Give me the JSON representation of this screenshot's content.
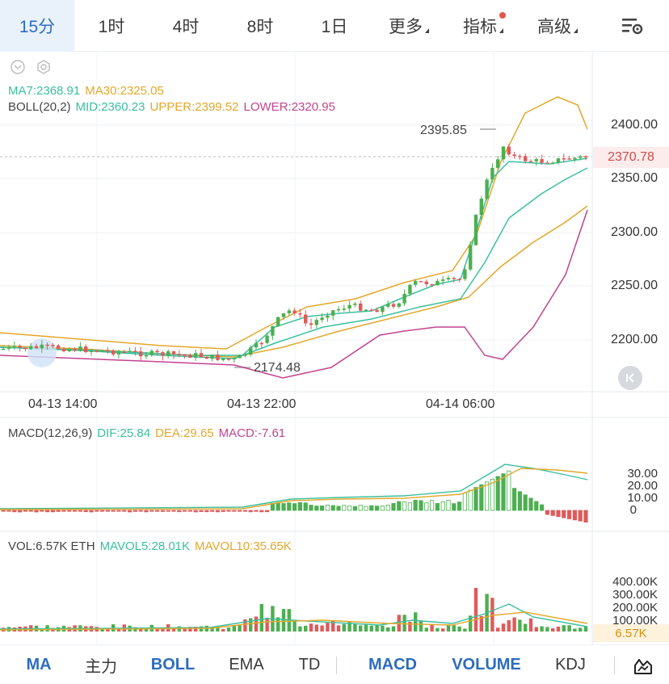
{
  "topbar": {
    "tabs": [
      {
        "label": "15分",
        "active": true
      },
      {
        "label": "1时",
        "active": false
      },
      {
        "label": "4时",
        "active": false
      },
      {
        "label": "8时",
        "active": false
      },
      {
        "label": "1日",
        "active": false
      },
      {
        "label": "更多",
        "active": false
      },
      {
        "label": "指标",
        "active": false
      },
      {
        "label": "高级",
        "active": false
      }
    ],
    "settings_icon": "chart-settings-icon"
  },
  "main_legend": {
    "ma7": "MA7:2368.91",
    "ma30": "MA30:2325.05",
    "boll": "BOLL(20,2)",
    "mid": "MID:2360.23",
    "upper": "UPPER:2399.52",
    "lower": "LOWER:2320.95"
  },
  "price_axis": [
    "2400.00",
    "2350.00",
    "2300.00",
    "2250.00",
    "2200.00"
  ],
  "current_price": "2370.78",
  "high_marker": "2395.85",
  "low_marker": "2174.48",
  "time_axis": [
    "04-13 14:00",
    "04-13 22:00",
    "04-14 06:00"
  ],
  "macd_legend": {
    "name": "MACD(12,26,9)",
    "dif": "DIF:25.84",
    "dea": "DEA:29.65",
    "macd": "MACD:-7.61"
  },
  "macd_axis": [
    "30.00",
    "20.00",
    "10.00",
    "0"
  ],
  "vol_legend": {
    "vol": "VOL:6.57K ETH",
    "mavol5": "MAVOL5:28.01K",
    "mavol10": "MAVOL10:35.65K"
  },
  "vol_axis": [
    "400.00K",
    "300.00K",
    "200.00K",
    "100.00K"
  ],
  "vol_current": "6.57K",
  "bottombar": {
    "items": [
      {
        "label": "MA",
        "on": true
      },
      {
        "label": "主力",
        "on": false
      },
      {
        "label": "BOLL",
        "on": true
      },
      {
        "label": "EMA",
        "on": false
      },
      {
        "label": "TD",
        "on": false
      },
      {
        "label": "MACD",
        "on": true
      },
      {
        "label": "VOLUME",
        "on": true
      },
      {
        "label": "KDJ",
        "on": false
      }
    ],
    "draw_icon": "draw-tool-icon"
  },
  "colors": {
    "up": "#4caf50",
    "down": "#e05a5a",
    "ma7": "#3bbf9f",
    "ma30": "#e3a72b",
    "lower": "#c2448f",
    "accent": "#2d6cc0"
  }
}
